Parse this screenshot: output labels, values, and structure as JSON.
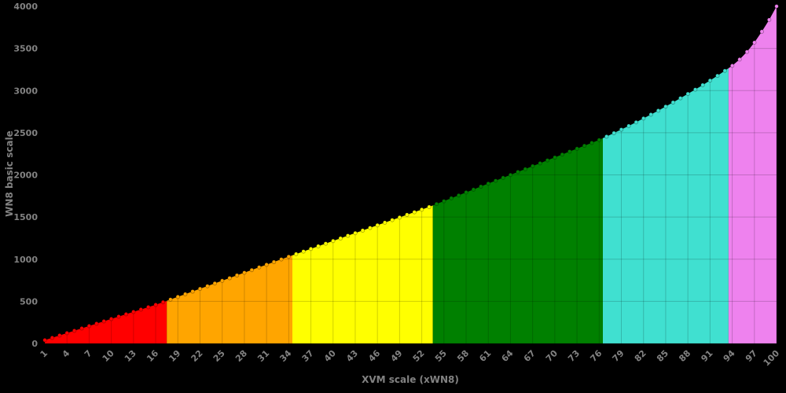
{
  "page": {
    "background": "#000000",
    "axis_text_color": "#828282"
  },
  "chart_data": {
    "type": "area",
    "title": "",
    "xlabel": "XVM scale (xWN8)",
    "ylabel": "WN8 basic scale",
    "xlim": [
      1,
      100
    ],
    "ylim": [
      0,
      4000
    ],
    "x_ticks": [
      1,
      4,
      7,
      10,
      13,
      16,
      19,
      22,
      25,
      28,
      31,
      34,
      37,
      40,
      43,
      46,
      49,
      52,
      55,
      58,
      61,
      64,
      67,
      70,
      73,
      76,
      79,
      82,
      85,
      88,
      91,
      94,
      97,
      100
    ],
    "y_ticks": [
      0,
      500,
      1000,
      1500,
      2000,
      2500,
      3000,
      3500,
      4000
    ],
    "grid": "dark overlay gridlines, visible only over filled area",
    "legend_position": "none",
    "marker": "circle",
    "bands": [
      {
        "name": "very-bad",
        "color": "#ff0000",
        "x_from": 1,
        "x_to": 17.5
      },
      {
        "name": "bad",
        "color": "#ffa500",
        "x_from": 17.5,
        "x_to": 34.5
      },
      {
        "name": "average",
        "color": "#ffff00",
        "x_from": 34.5,
        "x_to": 53.5
      },
      {
        "name": "good",
        "color": "#008000",
        "x_from": 53.5,
        "x_to": 76.5
      },
      {
        "name": "very-good",
        "color": "#40e0d0",
        "x_from": 76.5,
        "x_to": 93.5
      },
      {
        "name": "unique",
        "color": "#ee82ee",
        "x_from": 93.5,
        "x_to": 100
      }
    ],
    "series": [
      {
        "name": "WN8 basic scale",
        "x": [
          1,
          2,
          3,
          4,
          5,
          6,
          7,
          8,
          9,
          10,
          11,
          12,
          13,
          14,
          15,
          16,
          17,
          18,
          19,
          20,
          21,
          22,
          23,
          24,
          25,
          26,
          27,
          28,
          29,
          30,
          31,
          32,
          33,
          34,
          35,
          36,
          37,
          38,
          39,
          40,
          41,
          42,
          43,
          44,
          45,
          46,
          47,
          48,
          49,
          50,
          51,
          52,
          53,
          54,
          55,
          56,
          57,
          58,
          59,
          60,
          61,
          62,
          63,
          64,
          65,
          66,
          67,
          68,
          69,
          70,
          71,
          72,
          73,
          74,
          75,
          76,
          77,
          78,
          79,
          80,
          81,
          82,
          83,
          84,
          85,
          86,
          87,
          88,
          89,
          90,
          91,
          92,
          93,
          94,
          95,
          96,
          97,
          98,
          99,
          100
        ],
        "y": [
          40,
          68,
          96,
          124,
          152,
          180,
          208,
          236,
          264,
          292,
          320,
          348,
          376,
          404,
          432,
          460,
          490,
          522,
          554,
          586,
          617,
          649,
          681,
          713,
          745,
          776,
          808,
          840,
          872,
          904,
          935,
          967,
          999,
          1030,
          1061,
          1092,
          1123,
          1154,
          1185,
          1217,
          1248,
          1279,
          1310,
          1341,
          1372,
          1403,
          1434,
          1465,
          1496,
          1527,
          1558,
          1589,
          1620,
          1655,
          1689,
          1724,
          1758,
          1793,
          1827,
          1862,
          1897,
          1931,
          1966,
          2000,
          2035,
          2069,
          2104,
          2138,
          2173,
          2207,
          2242,
          2277,
          2311,
          2346,
          2380,
          2415,
          2455,
          2496,
          2538,
          2581,
          2625,
          2670,
          2716,
          2763,
          2811,
          2860,
          2910,
          2961,
          3013,
          3066,
          3120,
          3176,
          3235,
          3295,
          3370,
          3460,
          3570,
          3700,
          3840,
          4000
        ]
      }
    ]
  }
}
